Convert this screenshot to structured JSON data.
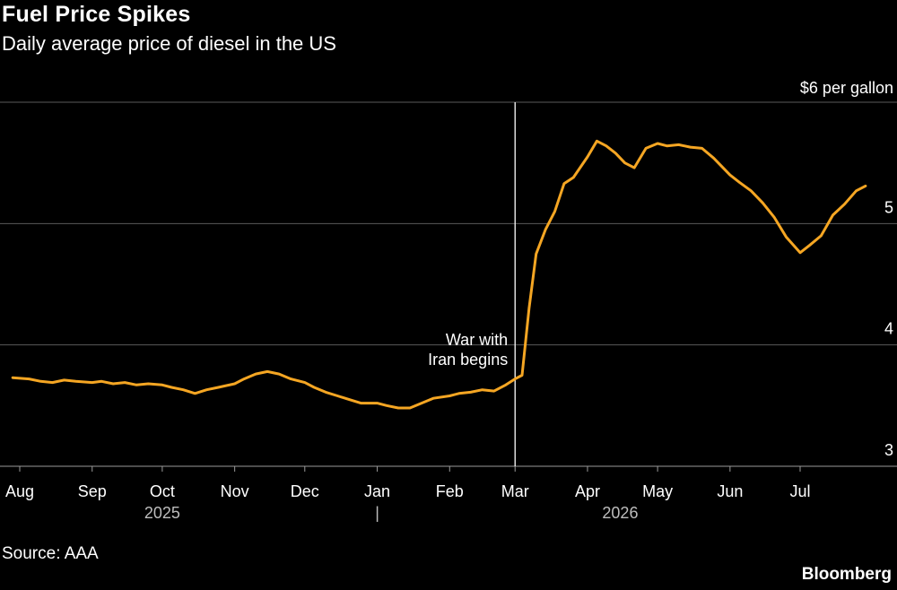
{
  "title": "Fuel Price Spikes",
  "subtitle": "Daily average price of diesel in the US",
  "source": "Source: AAA",
  "brand": "Bloomberg",
  "colors": {
    "background": "#000000",
    "line": "#f5a623",
    "grid": "#5a5a5a",
    "text": "#ffffff"
  },
  "chart_data": {
    "type": "line",
    "title": "Fuel Price Spikes",
    "subtitle": "Daily average price of diesel in the US",
    "ylabel": "",
    "xlabel": "",
    "ylim": [
      3,
      6
    ],
    "y_ticks": [
      {
        "value": 6,
        "label": "$6 per gallon"
      },
      {
        "value": 5,
        "label": "5"
      },
      {
        "value": 4,
        "label": "4"
      },
      {
        "value": 3,
        "label": "3"
      }
    ],
    "x_ticks": [
      {
        "date": "2025-08-01",
        "label": "Aug"
      },
      {
        "date": "2025-09-01",
        "label": "Sep"
      },
      {
        "date": "2025-10-01",
        "label": "Oct"
      },
      {
        "date": "2025-11-01",
        "label": "Nov"
      },
      {
        "date": "2025-12-01",
        "label": "Dec"
      },
      {
        "date": "2026-01-01",
        "label": "Jan"
      },
      {
        "date": "2026-02-01",
        "label": "Feb"
      },
      {
        "date": "2026-03-01",
        "label": "Mar"
      },
      {
        "date": "2026-04-01",
        "label": "Apr"
      },
      {
        "date": "2026-05-01",
        "label": "May"
      },
      {
        "date": "2026-06-01",
        "label": "Jun"
      },
      {
        "date": "2026-07-01",
        "label": "Jul"
      }
    ],
    "year_labels": [
      {
        "date": "2025-10-01",
        "label": "2025"
      },
      {
        "date": "2026-04-15",
        "label": "2026"
      }
    ],
    "year_divider": {
      "date": "2026-01-01",
      "label": "|"
    },
    "grid": true,
    "annotations": [
      {
        "date": "2026-03-01",
        "lines": [
          "War with",
          "Iran begins"
        ]
      }
    ],
    "series": [
      {
        "x": [
          "2025-07-29",
          "2025-08-05",
          "2025-08-10",
          "2025-08-15",
          "2025-08-20",
          "2025-08-25",
          "2025-09-01",
          "2025-09-05",
          "2025-09-10",
          "2025-09-15",
          "2025-09-20",
          "2025-09-25",
          "2025-10-01",
          "2025-10-05",
          "2025-10-10",
          "2025-10-15",
          "2025-10-20",
          "2025-10-25",
          "2025-11-01",
          "2025-11-05",
          "2025-11-10",
          "2025-11-15",
          "2025-11-20",
          "2025-11-25",
          "2025-12-01",
          "2025-12-05",
          "2025-12-10",
          "2025-12-15",
          "2025-12-20",
          "2025-12-25",
          "2026-01-01",
          "2026-01-05",
          "2026-01-10",
          "2026-01-15",
          "2026-01-20",
          "2026-01-25",
          "2026-02-01",
          "2026-02-05",
          "2026-02-10",
          "2026-02-15",
          "2026-02-20",
          "2026-02-25",
          "2026-03-01",
          "2026-03-04",
          "2026-03-07",
          "2026-03-10",
          "2026-03-14",
          "2026-03-18",
          "2026-03-22",
          "2026-03-26",
          "2026-04-01",
          "2026-04-05",
          "2026-04-09",
          "2026-04-13",
          "2026-04-17",
          "2026-04-21",
          "2026-04-26",
          "2026-05-01",
          "2026-05-05",
          "2026-05-10",
          "2026-05-15",
          "2026-05-20",
          "2026-05-25",
          "2026-06-01",
          "2026-06-05",
          "2026-06-10",
          "2026-06-15",
          "2026-06-20",
          "2026-06-25",
          "2026-07-01",
          "2026-07-05",
          "2026-07-10",
          "2026-07-15",
          "2026-07-20",
          "2026-07-25",
          "2026-07-29"
        ],
        "values": [
          3.73,
          3.72,
          3.7,
          3.69,
          3.71,
          3.7,
          3.69,
          3.7,
          3.68,
          3.69,
          3.67,
          3.68,
          3.67,
          3.65,
          3.63,
          3.6,
          3.63,
          3.65,
          3.68,
          3.72,
          3.76,
          3.78,
          3.76,
          3.72,
          3.69,
          3.65,
          3.61,
          3.58,
          3.55,
          3.52,
          3.52,
          3.5,
          3.48,
          3.48,
          3.52,
          3.56,
          3.58,
          3.6,
          3.61,
          3.63,
          3.62,
          3.67,
          3.72,
          3.75,
          4.3,
          4.75,
          4.95,
          5.1,
          5.33,
          5.38,
          5.55,
          5.68,
          5.64,
          5.58,
          5.5,
          5.46,
          5.62,
          5.66,
          5.64,
          5.65,
          5.63,
          5.62,
          5.54,
          5.4,
          5.34,
          5.27,
          5.17,
          5.05,
          4.89,
          4.76,
          4.82,
          4.9,
          5.07,
          5.16,
          5.27,
          5.31
        ]
      }
    ]
  }
}
